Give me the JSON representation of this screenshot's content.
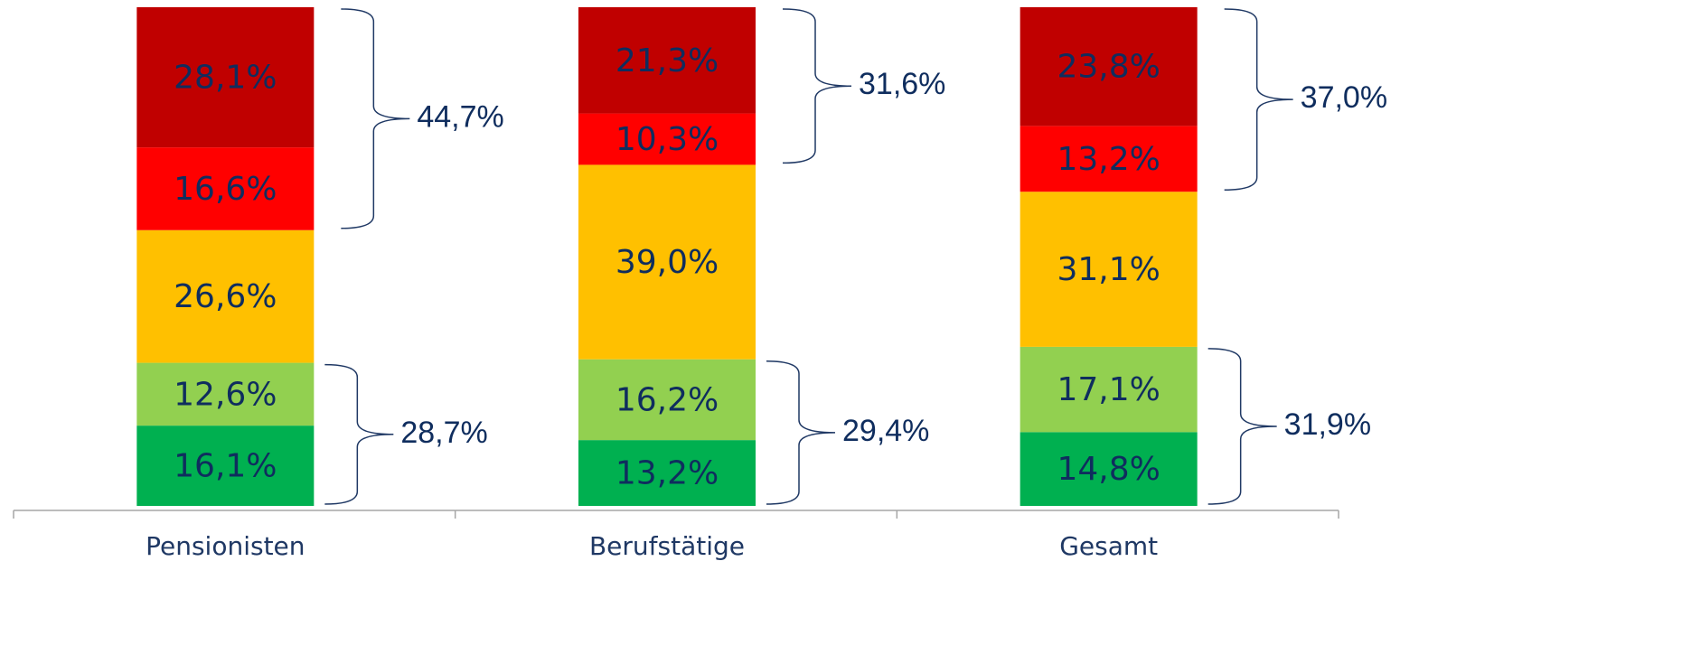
{
  "chart_data": {
    "type": "stacked_bar",
    "categories": [
      "Pensionisten",
      "Berufstätige",
      "Gesamt"
    ],
    "ylim": [
      0,
      100
    ],
    "series": [
      {
        "color": "#00b050",
        "values": [
          16.1,
          13.2,
          14.8
        ],
        "value_labels": [
          "16,1%",
          "13,2%",
          "14,8%"
        ]
      },
      {
        "color": "#92d050",
        "values": [
          12.6,
          16.2,
          17.1
        ],
        "value_labels": [
          "12,6%",
          "16,2%",
          "17,1%"
        ]
      },
      {
        "color": "#ffc000",
        "values": [
          26.6,
          39.0,
          31.1
        ],
        "value_labels": [
          "26,6%",
          "39,0%",
          "31,1%"
        ]
      },
      {
        "color": "#ff0000",
        "values": [
          16.6,
          10.3,
          13.2
        ],
        "value_labels": [
          "16,6%",
          "10,3%",
          "13,2%"
        ]
      },
      {
        "color": "#c00000",
        "values": [
          28.1,
          21.3,
          23.8
        ],
        "value_labels": [
          "28,1%",
          "21,3%",
          "23,8%"
        ]
      }
    ],
    "top_totals": {
      "values": [
        44.7,
        31.6,
        37.0
      ],
      "value_labels": [
        "44,7%",
        "31,6%",
        "37,0%"
      ]
    },
    "bottom_totals": {
      "values": [
        28.7,
        29.4,
        31.9
      ],
      "value_labels": [
        "28,7%",
        "29,4%",
        "31,9%"
      ]
    }
  }
}
